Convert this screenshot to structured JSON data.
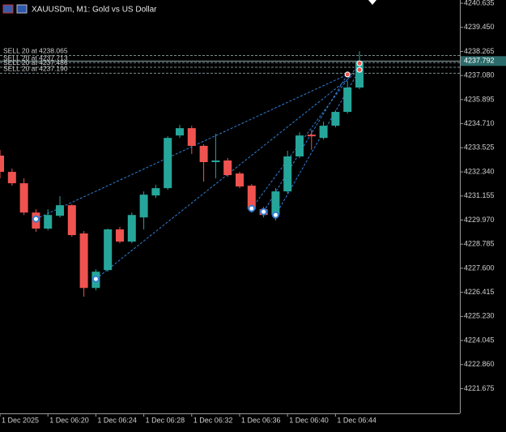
{
  "chart_data": {
    "type": "candlestick",
    "title": "XAUUSDm, M1:  Gold vs US Dollar",
    "categories": [
      "1 Dec 2025",
      null,
      null,
      null,
      "1 Dec 06:20",
      null,
      null,
      null,
      "1 Dec 06:24",
      null,
      null,
      null,
      "1 Dec 06:28",
      null,
      null,
      null,
      "1 Dec 06:32",
      null,
      null,
      null,
      "1 Dec 06:36",
      null,
      null,
      null,
      "1 Dec 06:40",
      null,
      null,
      null,
      "1 Dec 06:44",
      null,
      null
    ],
    "open": [
      4233.14,
      4232.34,
      4231.78,
      4230.34,
      4229.55,
      4230.18,
      4230.7,
      4229.31,
      4226.63,
      4227.51,
      4229.51,
      4228.91,
      4230.1,
      4231.18,
      4231.54,
      4234.13,
      4234.49,
      4233.62,
      4232.82,
      4232.9,
      4232.26,
      4231.66,
      4230.5,
      4230.22,
      4231.38,
      4233.1,
      4234.17,
      4234.01,
      4234.61,
      4235.29,
      4236.49
    ],
    "high": [
      4233.42,
      4232.5,
      4232.02,
      4230.5,
      4230.5,
      4231.14,
      4230.74,
      4229.43,
      4227.55,
      4229.55,
      4229.63,
      4230.34,
      4231.38,
      4231.7,
      4234.09,
      4234.65,
      4234.61,
      4233.7,
      4234.21,
      4233.02,
      4232.34,
      4231.74,
      4230.62,
      4231.54,
      4233.38,
      4234.29,
      4234.41,
      4234.81,
      4235.37,
      4236.81,
      4238.28
    ],
    "low": [
      4232.02,
      4231.66,
      4230.22,
      4229.39,
      4229.47,
      4230.1,
      4229.15,
      4226.2,
      4226.51,
      4227.43,
      4228.83,
      4228.83,
      4229.51,
      4231.06,
      4231.46,
      4234.01,
      4233.22,
      4231.86,
      4232.02,
      4232.1,
      4231.54,
      4230.34,
      4230.1,
      4229.95,
      4231.26,
      4233.02,
      4233.42,
      4233.93,
      4234.53,
      4235.21,
      4236.41
    ],
    "close": [
      4232.34,
      4231.78,
      4230.34,
      4229.55,
      4230.22,
      4230.7,
      4229.23,
      4226.63,
      4227.43,
      4229.51,
      4228.91,
      4230.22,
      4231.22,
      4231.54,
      4234.01,
      4234.49,
      4233.62,
      4232.82,
      4232.9,
      4232.18,
      4231.62,
      4230.5,
      4230.22,
      4231.38,
      4233.1,
      4234.13,
      4234.09,
      4234.61,
      4235.29,
      4236.49,
      4237.792
    ],
    "up_color": "#26a69a",
    "down_color": "#ef5350",
    "ylim": [
      4220.46,
      4240.795
    ],
    "yticks": [
      4240.635,
      {
        "value": 4239.45,
        "label": "4239.450"
      },
      4238.265,
      {
        "value": 4237.08,
        "label": "4237.080"
      },
      4235.895,
      {
        "value": 4234.71,
        "label": "4234.710"
      },
      4233.525,
      {
        "value": 4232.34,
        "label": "4232.340"
      },
      4231.155,
      {
        "value": 4229.97,
        "label": "4229.970"
      },
      4228.785,
      {
        "value": 4227.6,
        "label": "4227.600"
      },
      4226.415,
      {
        "value": 4225.23,
        "label": "4225.230"
      },
      4224.045,
      {
        "value": 4222.86,
        "label": "4222.860"
      },
      4221.675
    ],
    "last_price": 4237.792,
    "orders": [
      {
        "label": "SELL 20 at 4238.065",
        "price": 4238.065
      },
      {
        "label": "SELL 20 at 4237.713",
        "price": 4237.713
      },
      {
        "label": "SELL 20 at 4237.486",
        "price": 4237.486
      },
      {
        "label": "SELL 20 at 4237.190",
        "price": 4237.19
      }
    ],
    "trades": [
      {
        "open_index": 3,
        "open_price": 4230.02,
        "close_index": 29,
        "close_price": 4237.13
      },
      {
        "open_index": 8,
        "open_price": 4227.07,
        "close_index": 30,
        "close_price": 4237.36
      },
      {
        "open_index": 21,
        "open_price": 4230.54,
        "close_index": 30,
        "close_price": 4237.68
      },
      {
        "open_index": 22,
        "open_price": 4230.38,
        "close_index": 29,
        "close_price": 4237.13
      },
      {
        "open_index": 23,
        "open_price": 4230.22,
        "close_index": 30,
        "close_price": 4237.36
      }
    ]
  }
}
